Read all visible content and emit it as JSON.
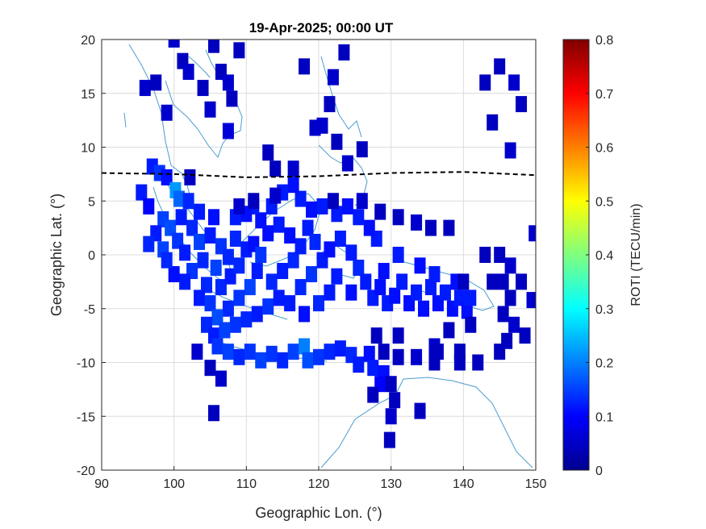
{
  "chart_data": {
    "type": "heatmap",
    "title": "19-Apr-2025; 00:00 UT",
    "xlabel": "Geographic Lon. (°)",
    "ylabel": "Geographic Lat. (°)",
    "xlim": [
      90,
      150
    ],
    "ylim": [
      -20,
      20
    ],
    "xticks": [
      "90",
      "100",
      "110",
      "120",
      "130",
      "140",
      "150"
    ],
    "yticks": [
      "20",
      "15",
      "10",
      "5",
      "0",
      "-5",
      "-10",
      "-15",
      "-20"
    ],
    "grid": true,
    "colorbar": {
      "label": "ROTI (TECU/min)",
      "colormap": "jet",
      "range": [
        0,
        0.8
      ],
      "ticks": [
        "0",
        "0.1",
        "0.2",
        "0.3",
        "0.4",
        "0.5",
        "0.6",
        "0.7",
        "0.8"
      ]
    },
    "magnetic_equator": [
      [
        90,
        7.6
      ],
      [
        100,
        7.5
      ],
      [
        110,
        7.2
      ],
      [
        120,
        7.3
      ],
      [
        130,
        7.6
      ],
      [
        140,
        7.7
      ],
      [
        150,
        7.4
      ]
    ],
    "cells": [
      [
        96,
        15.5,
        0.06
      ],
      [
        97.5,
        16,
        0.05
      ],
      [
        99,
        13.2,
        0.06
      ],
      [
        101.2,
        18,
        0.05
      ],
      [
        102,
        17,
        0.06
      ],
      [
        104,
        15.5,
        0.05
      ],
      [
        105,
        13.5,
        0.06
      ],
      [
        105.5,
        19.5,
        0.05
      ],
      [
        106.5,
        17,
        0.05
      ],
      [
        107.5,
        16,
        0.06
      ],
      [
        108,
        14.5,
        0.05
      ],
      [
        107.5,
        11.5,
        0.07
      ],
      [
        109,
        19,
        0.05
      ],
      [
        100,
        20,
        0.06
      ],
      [
        118,
        17.5,
        0.05
      ],
      [
        122,
        16.5,
        0.06
      ],
      [
        123.5,
        18.8,
        0.05
      ],
      [
        121.5,
        14,
        0.05
      ],
      [
        120.5,
        12,
        0.06
      ],
      [
        122.5,
        10.5,
        0.05
      ],
      [
        119.5,
        11.8,
        0.06
      ],
      [
        113,
        9.5,
        0.05
      ],
      [
        116.5,
        8,
        0.06
      ],
      [
        114,
        8,
        0.05
      ],
      [
        124,
        8.5,
        0.06
      ],
      [
        126,
        9.8,
        0.05
      ],
      [
        143,
        16,
        0.05
      ],
      [
        145,
        17.5,
        0.05
      ],
      [
        147,
        16,
        0.06
      ],
      [
        148,
        14,
        0.05
      ],
      [
        144,
        12.3,
        0.05
      ],
      [
        146.5,
        9.7,
        0.06
      ],
      [
        95.5,
        5.8,
        0.12
      ],
      [
        96.5,
        4.5,
        0.1
      ],
      [
        97,
        8.2,
        0.12
      ],
      [
        98,
        7.6,
        0.14
      ],
      [
        99,
        7.2,
        0.11
      ],
      [
        100.2,
        6,
        0.22
      ],
      [
        100.7,
        5.2,
        0.18
      ],
      [
        98.5,
        3.3,
        0.15
      ],
      [
        99.5,
        2.5,
        0.16
      ],
      [
        97.5,
        2,
        0.12
      ],
      [
        96.5,
        1,
        0.13
      ],
      [
        98.5,
        0.5,
        0.15
      ],
      [
        100.5,
        1.3,
        0.14
      ],
      [
        101.5,
        0.2,
        0.12
      ],
      [
        102.5,
        2.5,
        0.13
      ],
      [
        103.5,
        1.2,
        0.15
      ],
      [
        104,
        -0.5,
        0.13
      ],
      [
        102.5,
        -1.5,
        0.14
      ],
      [
        101.5,
        -2.5,
        0.12
      ],
      [
        100,
        -1.8,
        0.11
      ],
      [
        99,
        -0.5,
        0.13
      ],
      [
        105,
        1.8,
        0.12
      ],
      [
        106.5,
        0.8,
        0.14
      ],
      [
        107.5,
        -0.2,
        0.13
      ],
      [
        105.8,
        -1.2,
        0.15
      ],
      [
        104.5,
        -2.8,
        0.13
      ],
      [
        103.5,
        -4,
        0.12
      ],
      [
        105,
        -4.5,
        0.14
      ],
      [
        106.5,
        -3,
        0.13
      ],
      [
        107.8,
        -2,
        0.12
      ],
      [
        109,
        -1,
        0.13
      ],
      [
        110,
        0.5,
        0.12
      ],
      [
        108.5,
        1.5,
        0.13
      ],
      [
        111,
        1,
        0.11
      ],
      [
        112,
        0,
        0.14
      ],
      [
        111.5,
        -1.5,
        0.12
      ],
      [
        110.5,
        -3,
        0.15
      ],
      [
        109,
        -4,
        0.14
      ],
      [
        107.5,
        -5,
        0.13
      ],
      [
        106,
        -5.8,
        0.16
      ],
      [
        104.5,
        -6.5,
        0.13
      ],
      [
        105.5,
        -7.5,
        0.12
      ],
      [
        107,
        -7,
        0.15
      ],
      [
        108.5,
        -6.5,
        0.14
      ],
      [
        110,
        -6,
        0.13
      ],
      [
        111.5,
        -5.5,
        0.12
      ],
      [
        113,
        -4.8,
        0.14
      ],
      [
        114.5,
        -4,
        0.12
      ],
      [
        113.5,
        -2.5,
        0.13
      ],
      [
        115,
        -1.5,
        0.12
      ],
      [
        116.5,
        -0.5,
        0.13
      ],
      [
        117.5,
        0.8,
        0.12
      ],
      [
        116,
        1.8,
        0.11
      ],
      [
        114.5,
        2.8,
        0.12
      ],
      [
        113,
        2,
        0.11
      ],
      [
        118.5,
        2.5,
        0.12
      ],
      [
        119.5,
        1.2,
        0.13
      ],
      [
        120.5,
        -0.5,
        0.12
      ],
      [
        119,
        -1.8,
        0.14
      ],
      [
        117.5,
        -3,
        0.13
      ],
      [
        116,
        -4.5,
        0.12
      ],
      [
        118,
        -5.5,
        0.11
      ],
      [
        120,
        -4.5,
        0.13
      ],
      [
        121.5,
        -3.5,
        0.12
      ],
      [
        122.5,
        -2,
        0.12
      ],
      [
        121.5,
        0.5,
        0.11
      ],
      [
        123,
        1.5,
        0.12
      ],
      [
        124.5,
        0.2,
        0.12
      ],
      [
        125.5,
        -1.2,
        0.13
      ],
      [
        126.5,
        -2.5,
        0.12
      ],
      [
        124.5,
        -3.5,
        0.11
      ],
      [
        127.5,
        -4,
        0.12
      ],
      [
        128.5,
        -3,
        0.11
      ],
      [
        129.5,
        -4.5,
        0.12
      ],
      [
        130.5,
        -3.8,
        0.11
      ],
      [
        131.5,
        -2.5,
        0.12
      ],
      [
        132.5,
        -4.5,
        0.11
      ],
      [
        133.5,
        -3.5,
        0.12
      ],
      [
        134.5,
        -5,
        0.11
      ],
      [
        135.5,
        -3,
        0.12
      ],
      [
        136.5,
        -4.5,
        0.11
      ],
      [
        137.5,
        -3.5,
        0.12
      ],
      [
        138.5,
        -5,
        0.11
      ],
      [
        139.5,
        -4,
        0.12
      ],
      [
        140.5,
        -5.2,
        0.11
      ],
      [
        141,
        -4,
        0.12
      ],
      [
        139,
        -2.5,
        0.11
      ],
      [
        136,
        -1.8,
        0.12
      ],
      [
        134,
        -1,
        0.11
      ],
      [
        131,
        0,
        0.12
      ],
      [
        129,
        -1.5,
        0.11
      ],
      [
        128,
        1.5,
        0.12
      ],
      [
        127,
        2.5,
        0.11
      ],
      [
        125.5,
        3.5,
        0.12
      ],
      [
        124,
        4.5,
        0.11
      ],
      [
        122.5,
        3.8,
        0.12
      ],
      [
        120.5,
        4.5,
        0.12
      ],
      [
        119,
        4.2,
        0.11
      ],
      [
        117.5,
        5.2,
        0.12
      ],
      [
        116.5,
        6.5,
        0.11
      ],
      [
        115,
        5.8,
        0.12
      ],
      [
        113.5,
        4.5,
        0.12
      ],
      [
        112,
        3.2,
        0.11
      ],
      [
        111,
        4.5,
        0.12
      ],
      [
        110,
        3.8,
        0.11
      ],
      [
        108.5,
        3.5,
        0.12
      ],
      [
        105.5,
        3.5,
        0.11
      ],
      [
        103.5,
        4,
        0.12
      ],
      [
        102,
        5,
        0.13
      ],
      [
        101,
        3.5,
        0.12
      ],
      [
        102.2,
        7.2,
        0.05
      ],
      [
        109,
        4.5,
        0.06
      ],
      [
        111,
        5,
        0.05
      ],
      [
        114,
        5.5,
        0.06
      ],
      [
        122,
        5,
        0.05
      ],
      [
        126,
        5,
        0.06
      ],
      [
        128.5,
        4,
        0.05
      ],
      [
        131,
        3.5,
        0.05
      ],
      [
        133.5,
        3,
        0.06
      ],
      [
        135.5,
        2.5,
        0.05
      ],
      [
        138,
        2.5,
        0.05
      ],
      [
        149.8,
        2,
        0.06
      ],
      [
        143,
        0,
        0.05
      ],
      [
        145,
        0,
        0.05
      ],
      [
        146.5,
        -1,
        0.06
      ],
      [
        145.5,
        -2.5,
        0.05
      ],
      [
        144,
        -2.5,
        0.05
      ],
      [
        148,
        -2.5,
        0.05
      ],
      [
        149.5,
        -4.2,
        0.06
      ],
      [
        140,
        -2.5,
        0.05
      ],
      [
        146.5,
        -4,
        0.05
      ],
      [
        145.5,
        -5.5,
        0.05
      ],
      [
        147,
        -6.5,
        0.06
      ],
      [
        146,
        -8,
        0.05
      ],
      [
        148.5,
        -7.5,
        0.05
      ],
      [
        145,
        -9,
        0.05
      ],
      [
        141,
        -6.5,
        0.05
      ],
      [
        138,
        -7,
        0.05
      ],
      [
        139.5,
        -9,
        0.05
      ],
      [
        136,
        -8.5,
        0.06
      ],
      [
        131,
        -7.5,
        0.05
      ],
      [
        128,
        -7.5,
        0.05
      ],
      [
        129,
        -9,
        0.05
      ],
      [
        106,
        -8.5,
        0.14
      ],
      [
        107.5,
        -9,
        0.15
      ],
      [
        109,
        -9.5,
        0.13
      ],
      [
        110.5,
        -9,
        0.14
      ],
      [
        112,
        -9.8,
        0.15
      ],
      [
        113.5,
        -9.2,
        0.14
      ],
      [
        115,
        -9.8,
        0.13
      ],
      [
        116.5,
        -9,
        0.15
      ],
      [
        118,
        -8.5,
        0.2
      ],
      [
        118.5,
        -9.8,
        0.16
      ],
      [
        120,
        -9.5,
        0.14
      ],
      [
        121.5,
        -9,
        0.13
      ],
      [
        123,
        -8.7,
        0.12
      ],
      [
        124.5,
        -9.3,
        0.13
      ],
      [
        125.5,
        -10.2,
        0.12
      ],
      [
        127,
        -9.2,
        0.11
      ],
      [
        127.5,
        -10.5,
        0.12
      ],
      [
        129,
        -11,
        0.11
      ],
      [
        128.5,
        -12,
        0.1
      ],
      [
        103.2,
        -9,
        0.06
      ],
      [
        105,
        -10.5,
        0.05
      ],
      [
        106.5,
        -11.5,
        0.06
      ],
      [
        105.5,
        -14.7,
        0.05
      ],
      [
        127.5,
        -13,
        0.05
      ],
      [
        130,
        -12,
        0.05
      ],
      [
        130.5,
        -13.5,
        0.05
      ],
      [
        130,
        -15,
        0.06
      ],
      [
        134,
        -14.5,
        0.05
      ],
      [
        129.8,
        -17.2,
        0.05
      ],
      [
        131,
        -9.5,
        0.05
      ],
      [
        133.5,
        -9.5,
        0.06
      ],
      [
        136,
        -10,
        0.05
      ],
      [
        139.5,
        -10,
        0.05
      ],
      [
        142,
        -10,
        0.05
      ],
      [
        136.5,
        -9,
        0.05
      ]
    ]
  }
}
